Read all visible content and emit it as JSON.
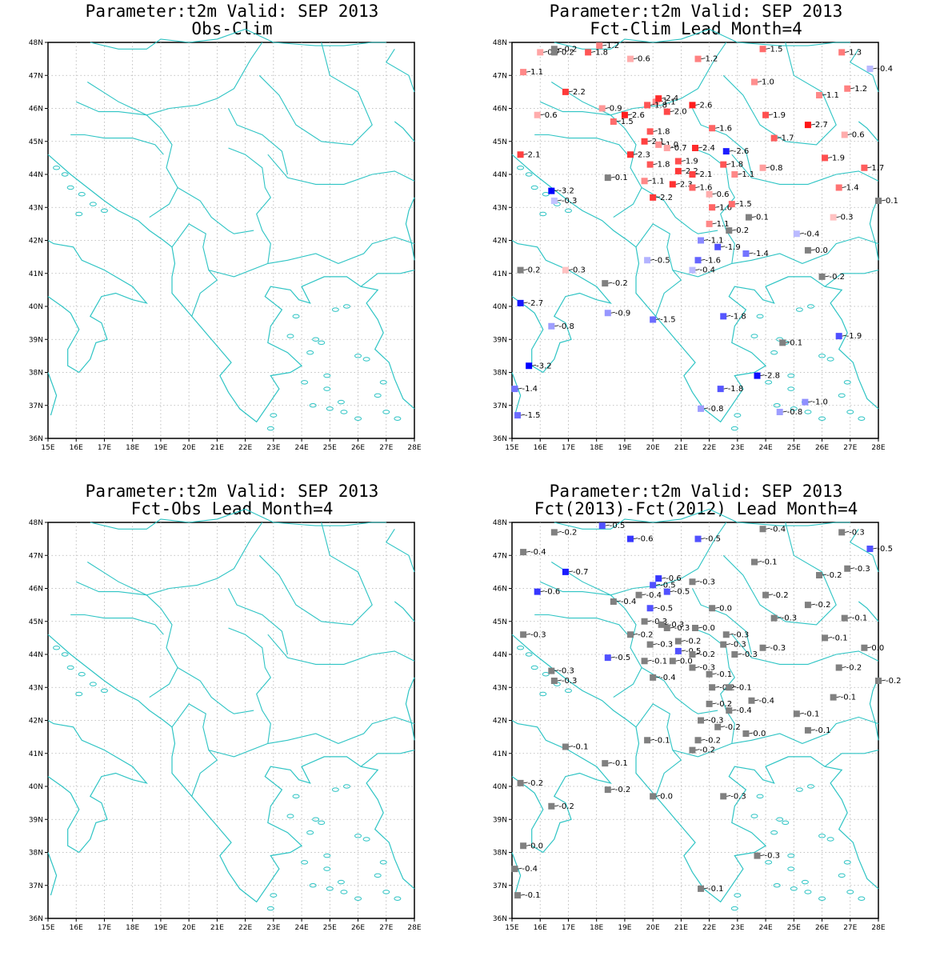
{
  "colors": {
    "coast": "#2ec4c4",
    "grid": "#b0b0b0",
    "neutral": "#808080"
  },
  "axes": {
    "x_ticks": [
      "15E",
      "16E",
      "17E",
      "18E",
      "19E",
      "20E",
      "21E",
      "22E",
      "23E",
      "24E",
      "25E",
      "26E",
      "27E",
      "28E"
    ],
    "y_ticks": [
      "48N",
      "47N",
      "46N",
      "45N",
      "44N",
      "43N",
      "42N",
      "41N",
      "40N",
      "39N",
      "38N",
      "37N",
      "36N"
    ]
  },
  "panels": [
    {
      "title": "Parameter:t2m Valid: SEP 2013",
      "subtitle": "Obs-Clim",
      "stations": []
    },
    {
      "title": "Parameter:t2m Valid: SEP 2013",
      "subtitle": "Fct-Clim Lead Month=4",
      "stations": [
        {
          "lon": 16.5,
          "lat": 47.8,
          "v": -0.2
        },
        {
          "lon": 16,
          "lat": 47.7,
          "v": 0.7
        },
        {
          "lon": 16.5,
          "lat": 47.7,
          "v": 0.2
        },
        {
          "lon": 18.1,
          "lat": 47.9,
          "v": 1.2
        },
        {
          "lon": 17.7,
          "lat": 47.7,
          "v": 1.8
        },
        {
          "lon": 19.2,
          "lat": 47.5,
          "v": 0.6
        },
        {
          "lon": 21.6,
          "lat": 47.5,
          "v": 1.2
        },
        {
          "lon": 23.9,
          "lat": 47.8,
          "v": 1.5
        },
        {
          "lon": 26.7,
          "lat": 47.7,
          "v": 1.3
        },
        {
          "lon": 27.7,
          "lat": 47.2,
          "v": -0.4
        },
        {
          "lon": 15.4,
          "lat": 47.1,
          "v": 1.1
        },
        {
          "lon": 23.6,
          "lat": 46.8,
          "v": 1.0
        },
        {
          "lon": 16.9,
          "lat": 46.5,
          "v": 2.2
        },
        {
          "lon": 26.9,
          "lat": 46.6,
          "v": 1.2
        },
        {
          "lon": 25.9,
          "lat": 46.4,
          "v": 1.1
        },
        {
          "lon": 20.1,
          "lat": 46.2,
          "v": 1.1
        },
        {
          "lon": 20.2,
          "lat": 46.3,
          "v": 2.4
        },
        {
          "lon": 19.8,
          "lat": 46.1,
          "v": 1.8
        },
        {
          "lon": 18.2,
          "lat": 46.0,
          "v": 0.9
        },
        {
          "lon": 21.4,
          "lat": 46.1,
          "v": 2.6
        },
        {
          "lon": 15.9,
          "lat": 45.8,
          "v": 0.6
        },
        {
          "lon": 19.0,
          "lat": 45.8,
          "v": 2.6
        },
        {
          "lon": 20.5,
          "lat": 45.9,
          "v": 2.0
        },
        {
          "lon": 24.0,
          "lat": 45.8,
          "v": 1.9
        },
        {
          "lon": 18.6,
          "lat": 45.6,
          "v": 1.5
        },
        {
          "lon": 22.1,
          "lat": 45.4,
          "v": 1.6
        },
        {
          "lon": 19.9,
          "lat": 45.3,
          "v": 1.8
        },
        {
          "lon": 25.5,
          "lat": 45.5,
          "v": 2.7
        },
        {
          "lon": 24.3,
          "lat": 45.1,
          "v": 1.7
        },
        {
          "lon": 26.8,
          "lat": 45.2,
          "v": 0.6
        },
        {
          "lon": 19.7,
          "lat": 45.0,
          "v": 2.1
        },
        {
          "lon": 20.2,
          "lat": 44.9,
          "v": 1.0
        },
        {
          "lon": 20.5,
          "lat": 44.8,
          "v": 0.7
        },
        {
          "lon": 21.5,
          "lat": 44.8,
          "v": 2.4
        },
        {
          "lon": 22.6,
          "lat": 44.7,
          "v": -2.6
        },
        {
          "lon": 15.3,
          "lat": 44.6,
          "v": 2.1
        },
        {
          "lon": 19.2,
          "lat": 44.6,
          "v": 2.3
        },
        {
          "lon": 20.9,
          "lat": 44.4,
          "v": 1.9
        },
        {
          "lon": 19.9,
          "lat": 44.3,
          "v": 1.8
        },
        {
          "lon": 22.5,
          "lat": 44.3,
          "v": 1.8
        },
        {
          "lon": 26.1,
          "lat": 44.5,
          "v": 1.9
        },
        {
          "lon": 23.9,
          "lat": 44.2,
          "v": 0.8
        },
        {
          "lon": 27.5,
          "lat": 44.2,
          "v": 1.7
        },
        {
          "lon": 22.9,
          "lat": 44.0,
          "v": 1.1
        },
        {
          "lon": 20.9,
          "lat": 44.1,
          "v": 2.2
        },
        {
          "lon": 21.4,
          "lat": 44.0,
          "v": 2.1
        },
        {
          "lon": 18.4,
          "lat": 43.9,
          "v": 0.1
        },
        {
          "lon": 19.7,
          "lat": 43.8,
          "v": 1.1
        },
        {
          "lon": 20.7,
          "lat": 43.7,
          "v": 2.3
        },
        {
          "lon": 21.4,
          "lat": 43.6,
          "v": 1.6
        },
        {
          "lon": 26.6,
          "lat": 43.6,
          "v": 1.4
        },
        {
          "lon": 16.4,
          "lat": 43.5,
          "v": -3.2
        },
        {
          "lon": 16.5,
          "lat": 43.2,
          "v": -0.3
        },
        {
          "lon": 22.0,
          "lat": 43.4,
          "v": 0.6
        },
        {
          "lon": 20.0,
          "lat": 43.3,
          "v": 2.2
        },
        {
          "lon": 22.1,
          "lat": 43.0,
          "v": 1.6
        },
        {
          "lon": 22.8,
          "lat": 43.1,
          "v": 1.5
        },
        {
          "lon": 28.0,
          "lat": 43.2,
          "v": 0.1
        },
        {
          "lon": 23.4,
          "lat": 42.7,
          "v": 0.1
        },
        {
          "lon": 26.4,
          "lat": 42.7,
          "v": 0.3
        },
        {
          "lon": 22.0,
          "lat": 42.5,
          "v": 1.1
        },
        {
          "lon": 22.7,
          "lat": 42.3,
          "v": 0.2
        },
        {
          "lon": 25.1,
          "lat": 42.2,
          "v": -0.4
        },
        {
          "lon": 21.7,
          "lat": 42.0,
          "v": -1.1
        },
        {
          "lon": 22.3,
          "lat": 41.8,
          "v": -1.9
        },
        {
          "lon": 25.5,
          "lat": 41.7,
          "v": 0.0
        },
        {
          "lon": 23.3,
          "lat": 41.6,
          "v": -1.4
        },
        {
          "lon": 19.8,
          "lat": 41.4,
          "v": -0.5
        },
        {
          "lon": 21.6,
          "lat": 41.4,
          "v": -1.6
        },
        {
          "lon": 15.3,
          "lat": 41.1,
          "v": 0.2
        },
        {
          "lon": 16.9,
          "lat": 41.1,
          "v": 0.3
        },
        {
          "lon": 21.4,
          "lat": 41.1,
          "v": -0.4
        },
        {
          "lon": 26.0,
          "lat": 40.9,
          "v": -0.2
        },
        {
          "lon": 18.3,
          "lat": 40.7,
          "v": -0.2
        },
        {
          "lon": 15.3,
          "lat": 40.1,
          "v": -2.7
        },
        {
          "lon": 18.4,
          "lat": 39.8,
          "v": -0.9
        },
        {
          "lon": 20.0,
          "lat": 39.6,
          "v": -1.5
        },
        {
          "lon": 22.5,
          "lat": 39.7,
          "v": -1.8
        },
        {
          "lon": 16.4,
          "lat": 39.4,
          "v": -0.8
        },
        {
          "lon": 26.6,
          "lat": 39.1,
          "v": -1.9
        },
        {
          "lon": 24.6,
          "lat": 38.9,
          "v": 0.1
        },
        {
          "lon": 15.6,
          "lat": 38.2,
          "v": -3.2
        },
        {
          "lon": 23.7,
          "lat": 37.9,
          "v": -2.8
        },
        {
          "lon": 15.1,
          "lat": 37.5,
          "v": -1.4
        },
        {
          "lon": 22.4,
          "lat": 37.5,
          "v": -1.8
        },
        {
          "lon": 25.4,
          "lat": 37.1,
          "v": -1.0
        },
        {
          "lon": 15.2,
          "lat": 36.7,
          "v": -1.5
        },
        {
          "lon": 21.7,
          "lat": 36.9,
          "v": -0.8
        },
        {
          "lon": 24.5,
          "lat": 36.8,
          "v": -0.8
        }
      ]
    },
    {
      "title": "Parameter:t2m Valid: SEP 2013",
      "subtitle": "Fct-Obs Lead Month=4",
      "stations": []
    },
    {
      "title": "Parameter:t2m Valid: SEP 2013",
      "subtitle": "Fct(2013)-Fct(2012) Lead Month=4",
      "stations": [
        {
          "lon": 16.5,
          "lat": 47.7,
          "v": -0.2
        },
        {
          "lon": 18.2,
          "lat": 47.9,
          "v": -0.5
        },
        {
          "lon": 19.2,
          "lat": 47.5,
          "v": -0.6
        },
        {
          "lon": 21.6,
          "lat": 47.5,
          "v": -0.5
        },
        {
          "lon": 23.9,
          "lat": 47.8,
          "v": -0.4
        },
        {
          "lon": 26.7,
          "lat": 47.7,
          "v": -0.3
        },
        {
          "lon": 27.7,
          "lat": 47.2,
          "v": -0.5
        },
        {
          "lon": 15.4,
          "lat": 47.1,
          "v": -0.4
        },
        {
          "lon": 23.6,
          "lat": 46.8,
          "v": -0.1
        },
        {
          "lon": 16.9,
          "lat": 46.5,
          "v": -0.7
        },
        {
          "lon": 26.9,
          "lat": 46.6,
          "v": -0.3
        },
        {
          "lon": 25.9,
          "lat": 46.4,
          "v": -0.2
        },
        {
          "lon": 20.2,
          "lat": 46.3,
          "v": -0.6
        },
        {
          "lon": 21.4,
          "lat": 46.2,
          "v": -0.3
        },
        {
          "lon": 20.0,
          "lat": 46.1,
          "v": -0.5
        },
        {
          "lon": 15.9,
          "lat": 45.9,
          "v": -0.6
        },
        {
          "lon": 19.5,
          "lat": 45.8,
          "v": -0.4
        },
        {
          "lon": 20.5,
          "lat": 45.9,
          "v": -0.5
        },
        {
          "lon": 24.0,
          "lat": 45.8,
          "v": -0.2
        },
        {
          "lon": 18.6,
          "lat": 45.6,
          "v": -0.4
        },
        {
          "lon": 22.1,
          "lat": 45.4,
          "v": 0.0
        },
        {
          "lon": 19.9,
          "lat": 45.4,
          "v": -0.5
        },
        {
          "lon": 25.5,
          "lat": 45.5,
          "v": -0.2
        },
        {
          "lon": 24.3,
          "lat": 45.1,
          "v": -0.3
        },
        {
          "lon": 26.8,
          "lat": 45.1,
          "v": -0.1
        },
        {
          "lon": 19.7,
          "lat": 45.0,
          "v": -0.3
        },
        {
          "lon": 20.3,
          "lat": 44.9,
          "v": -0.3
        },
        {
          "lon": 20.5,
          "lat": 44.8,
          "v": -0.3
        },
        {
          "lon": 21.5,
          "lat": 44.8,
          "v": 0.0
        },
        {
          "lon": 22.6,
          "lat": 44.6,
          "v": -0.3
        },
        {
          "lon": 15.4,
          "lat": 44.6,
          "v": -0.3
        },
        {
          "lon": 19.2,
          "lat": 44.6,
          "v": -0.2
        },
        {
          "lon": 20.9,
          "lat": 44.4,
          "v": -0.2
        },
        {
          "lon": 19.9,
          "lat": 44.3,
          "v": -0.3
        },
        {
          "lon": 22.5,
          "lat": 44.3,
          "v": -0.3
        },
        {
          "lon": 26.1,
          "lat": 44.5,
          "v": -0.1
        },
        {
          "lon": 23.9,
          "lat": 44.2,
          "v": -0.3
        },
        {
          "lon": 27.5,
          "lat": 44.2,
          "v": 0.0
        },
        {
          "lon": 22.9,
          "lat": 44.0,
          "v": -0.3
        },
        {
          "lon": 20.9,
          "lat": 44.1,
          "v": -0.5
        },
        {
          "lon": 21.4,
          "lat": 44.0,
          "v": -0.2
        },
        {
          "lon": 18.4,
          "lat": 43.9,
          "v": -0.5
        },
        {
          "lon": 19.7,
          "lat": 43.8,
          "v": -0.1
        },
        {
          "lon": 20.7,
          "lat": 43.8,
          "v": 0.0
        },
        {
          "lon": 21.4,
          "lat": 43.6,
          "v": -0.3
        },
        {
          "lon": 26.6,
          "lat": 43.6,
          "v": -0.2
        },
        {
          "lon": 16.4,
          "lat": 43.5,
          "v": -0.3
        },
        {
          "lon": 16.5,
          "lat": 43.2,
          "v": -0.3
        },
        {
          "lon": 22.0,
          "lat": 43.4,
          "v": -0.1
        },
        {
          "lon": 20.0,
          "lat": 43.3,
          "v": -0.4
        },
        {
          "lon": 22.1,
          "lat": 43.0,
          "v": -0.2
        },
        {
          "lon": 22.7,
          "lat": 43.0,
          "v": -0.1
        },
        {
          "lon": 28.0,
          "lat": 43.2,
          "v": -0.2
        },
        {
          "lon": 23.5,
          "lat": 42.6,
          "v": -0.4
        },
        {
          "lon": 26.4,
          "lat": 42.7,
          "v": -0.1
        },
        {
          "lon": 22.0,
          "lat": 42.5,
          "v": -0.2
        },
        {
          "lon": 22.7,
          "lat": 42.3,
          "v": -0.4
        },
        {
          "lon": 25.1,
          "lat": 42.2,
          "v": -0.1
        },
        {
          "lon": 21.7,
          "lat": 42.0,
          "v": -0.3
        },
        {
          "lon": 22.3,
          "lat": 41.8,
          "v": -0.2
        },
        {
          "lon": 25.5,
          "lat": 41.7,
          "v": -0.1
        },
        {
          "lon": 23.3,
          "lat": 41.6,
          "v": 0.0
        },
        {
          "lon": 19.8,
          "lat": 41.4,
          "v": -0.1
        },
        {
          "lon": 21.6,
          "lat": 41.4,
          "v": -0.2
        },
        {
          "lon": 16.9,
          "lat": 41.2,
          "v": -0.1
        },
        {
          "lon": 21.4,
          "lat": 41.1,
          "v": -0.2
        },
        {
          "lon": 18.3,
          "lat": 40.7,
          "v": -0.1
        },
        {
          "lon": 15.3,
          "lat": 40.1,
          "v": -0.2
        },
        {
          "lon": 18.4,
          "lat": 39.9,
          "v": -0.2
        },
        {
          "lon": 20.0,
          "lat": 39.7,
          "v": 0.0
        },
        {
          "lon": 22.5,
          "lat": 39.7,
          "v": -0.3
        },
        {
          "lon": 16.4,
          "lat": 39.4,
          "v": -0.2
        },
        {
          "lon": 15.4,
          "lat": 38.2,
          "v": 0.0
        },
        {
          "lon": 23.7,
          "lat": 37.9,
          "v": -0.3
        },
        {
          "lon": 15.1,
          "lat": 37.5,
          "v": -0.4
        },
        {
          "lon": 15.2,
          "lat": 36.7,
          "v": -0.1
        },
        {
          "lon": 21.7,
          "lat": 36.9,
          "v": -0.1
        }
      ]
    }
  ]
}
